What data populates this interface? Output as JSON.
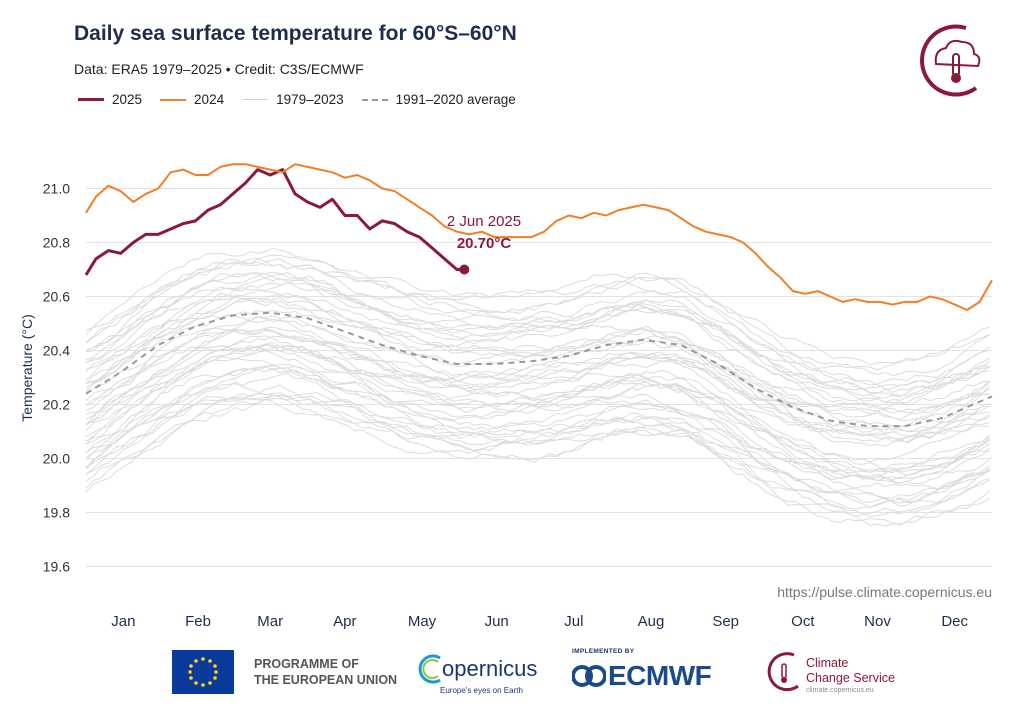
{
  "header": {
    "title": "Daily sea surface temperature for 60°S–60°N",
    "subtitle": "Data: ERA5 1979–2025  •  Credit: C3S/ECMWF"
  },
  "legend": [
    {
      "label": "2025",
      "color": "#8b1a3a",
      "style": "solid-thick"
    },
    {
      "label": "2024",
      "color": "#f07f2a",
      "style": "solid"
    },
    {
      "label": "1979–2023",
      "color": "#d9d9d9",
      "style": "solid-thin"
    },
    {
      "label": "1991–2020 average",
      "color": "#999999",
      "style": "dashed"
    }
  ],
  "annotation": {
    "date": "2 Jun 2025",
    "value": "20.70°C"
  },
  "source_url": "https://pulse.climate.copernicus.eu",
  "footer": {
    "eu_line1": "PROGRAMME OF",
    "eu_line2": "THE EUROPEAN UNION",
    "copernicus": "opernicus",
    "copernicus_sub": "Europe's eyes on Earth",
    "implemented_by": "IMPLEMENTED BY",
    "ecmwf": "ECMWF",
    "ccs_line1": "Climate",
    "ccs_line2": "Change Service",
    "ccs_sub": "climate.copernicus.eu"
  },
  "colors": {
    "title": "#1f2d4d",
    "y2025": "#8b1a3a",
    "y2024": "#f07f2a",
    "history": "#dcdcdc",
    "average": "#999999"
  },
  "chart_data": {
    "type": "line",
    "title": "Daily sea surface temperature for 60°S–60°N",
    "xlabel": "",
    "ylabel": "Temperature (°C)",
    "ylim": [
      19.55,
      21.15
    ],
    "yticks": [
      19.6,
      19.8,
      20.0,
      20.2,
      20.4,
      20.6,
      20.8,
      21.0
    ],
    "ytick_labels": [
      "19.6",
      "19.8",
      "20.0",
      "20.2",
      "20.4",
      "20.6",
      "20.8",
      "21.0"
    ],
    "xlim": [
      1,
      365
    ],
    "categories": [
      "Jan",
      "Feb",
      "Mar",
      "Apr",
      "May",
      "Jun",
      "Jul",
      "Aug",
      "Sep",
      "Oct",
      "Nov",
      "Dec"
    ],
    "category_days": [
      16,
      46,
      75,
      105,
      136,
      166,
      197,
      228,
      258,
      289,
      319,
      350
    ],
    "grid": true,
    "series": [
      {
        "name": "2025",
        "x": [
          1,
          5,
          10,
          15,
          20,
          25,
          30,
          35,
          40,
          45,
          50,
          55,
          60,
          65,
          70,
          75,
          80,
          85,
          90,
          95,
          100,
          105,
          110,
          115,
          120,
          125,
          130,
          135,
          140,
          145,
          150,
          153
        ],
        "values": [
          20.68,
          20.74,
          20.77,
          20.76,
          20.8,
          20.83,
          20.83,
          20.85,
          20.87,
          20.88,
          20.92,
          20.94,
          20.98,
          21.02,
          21.07,
          21.05,
          21.07,
          20.98,
          20.95,
          20.93,
          20.96,
          20.9,
          20.9,
          20.85,
          20.88,
          20.87,
          20.84,
          20.82,
          20.78,
          20.74,
          20.7,
          20.7
        ]
      },
      {
        "name": "2024",
        "x": [
          1,
          5,
          10,
          15,
          20,
          25,
          30,
          35,
          40,
          45,
          50,
          55,
          60,
          65,
          70,
          75,
          80,
          85,
          90,
          95,
          100,
          105,
          110,
          115,
          120,
          125,
          130,
          135,
          140,
          145,
          150,
          155,
          160,
          165,
          170,
          175,
          180,
          185,
          190,
          195,
          200,
          205,
          210,
          215,
          220,
          225,
          230,
          235,
          240,
          245,
          250,
          255,
          260,
          265,
          270,
          275,
          280,
          285,
          290,
          295,
          300,
          305,
          310,
          315,
          320,
          325,
          330,
          335,
          340,
          345,
          350,
          355,
          360,
          365
        ],
        "values": [
          20.91,
          20.97,
          21.01,
          20.99,
          20.95,
          20.98,
          21.0,
          21.06,
          21.07,
          21.05,
          21.05,
          21.08,
          21.09,
          21.09,
          21.08,
          21.07,
          21.06,
          21.09,
          21.08,
          21.07,
          21.06,
          21.04,
          21.05,
          21.03,
          21.0,
          20.99,
          20.96,
          20.93,
          20.9,
          20.86,
          20.84,
          20.83,
          20.84,
          20.82,
          20.82,
          20.82,
          20.82,
          20.84,
          20.88,
          20.9,
          20.89,
          20.91,
          20.9,
          20.92,
          20.93,
          20.94,
          20.93,
          20.92,
          20.89,
          20.86,
          20.84,
          20.83,
          20.82,
          20.8,
          20.76,
          20.71,
          20.67,
          20.62,
          20.61,
          20.62,
          20.6,
          20.58,
          20.59,
          20.58,
          20.58,
          20.57,
          20.58,
          20.58,
          20.6,
          20.59,
          20.57,
          20.55,
          20.58,
          20.66
        ]
      },
      {
        "name": "1991–2020 average",
        "x": [
          1,
          15,
          30,
          45,
          60,
          75,
          90,
          105,
          120,
          135,
          150,
          165,
          180,
          195,
          210,
          225,
          240,
          255,
          270,
          285,
          300,
          315,
          330,
          345,
          365
        ],
        "values": [
          20.24,
          20.32,
          20.42,
          20.49,
          20.53,
          20.54,
          20.52,
          20.47,
          20.42,
          20.38,
          20.35,
          20.35,
          20.36,
          20.38,
          20.42,
          20.44,
          20.42,
          20.35,
          20.26,
          20.19,
          20.14,
          20.12,
          20.12,
          20.15,
          20.23
        ]
      }
    ],
    "history_band": {
      "name": "1979–2023",
      "lines": 45,
      "min_offset": -0.35,
      "max_offset": 0.22
    }
  }
}
